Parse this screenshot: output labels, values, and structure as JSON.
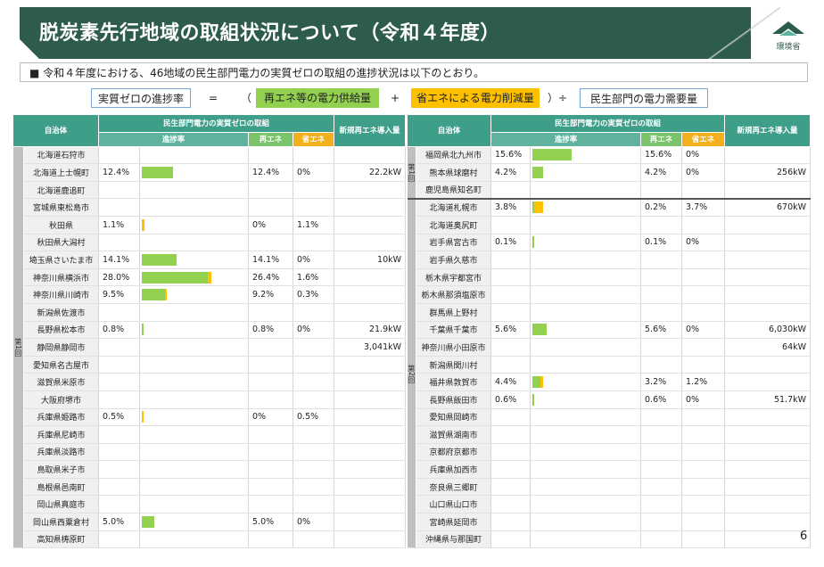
{
  "header": {
    "title": "脱炭素先行地域の取組状況について（令和４年度）",
    "logo_text": "環境省"
  },
  "description": "■  令和４年度における、46地域の民生部門電力の実質ゼロの取組の進捗状況は以下のとおり。",
  "formula": {
    "lhs": "実質ゼロの進捗率",
    "eq": "=",
    "lparen": "（",
    "term1": "再エネ等の電力供給量",
    "plus": "+",
    "term2": "省エネによる電力削減量",
    "rparen_div": "）÷",
    "term3": "民生部門の電力需要量"
  },
  "colors": {
    "title_bg": "#2e5c4c",
    "header_bg": "#3e9e8a",
    "re": "#92d050",
    "sho": "#ffc000"
  },
  "table_headers": {
    "municipality": "自治体",
    "group": "民生部門電力の実質ゼロの取組",
    "progress": "進捗率",
    "re": "再エネ",
    "sho": "省エネ",
    "new_re": "新規再エネ導入量"
  },
  "left_round_label": "第1回",
  "left_rows": [
    {
      "name": "北海道石狩市",
      "progress": "",
      "re": "",
      "sho": "",
      "new": "",
      "re_pct": 0,
      "sho_pct": 0
    },
    {
      "name": "北海道上士幌町",
      "progress": "12.4%",
      "re": "12.4%",
      "sho": "0%",
      "new": "22.2kW",
      "re_pct": 12.4,
      "sho_pct": 0
    },
    {
      "name": "北海道鹿追町",
      "progress": "",
      "re": "",
      "sho": "",
      "new": "",
      "re_pct": 0,
      "sho_pct": 0
    },
    {
      "name": "宮城県東松島市",
      "progress": "",
      "re": "",
      "sho": "",
      "new": "",
      "re_pct": 0,
      "sho_pct": 0
    },
    {
      "name": "秋田県",
      "progress": "1.1%",
      "re": "0%",
      "sho": "1.1%",
      "new": "",
      "re_pct": 0,
      "sho_pct": 1.1
    },
    {
      "name": "秋田県大潟村",
      "progress": "",
      "re": "",
      "sho": "",
      "new": "",
      "re_pct": 0,
      "sho_pct": 0
    },
    {
      "name": "埼玉県さいたま市",
      "progress": "14.1%",
      "re": "14.1%",
      "sho": "0%",
      "new": "10kW",
      "re_pct": 14.1,
      "sho_pct": 0
    },
    {
      "name": "神奈川県横浜市",
      "progress": "28.0%",
      "re": "26.4%",
      "sho": "1.6%",
      "new": "",
      "re_pct": 26.4,
      "sho_pct": 1.6
    },
    {
      "name": "神奈川県川崎市",
      "progress": "9.5%",
      "re": "9.2%",
      "sho": "0.3%",
      "new": "",
      "re_pct": 9.2,
      "sho_pct": 0.3
    },
    {
      "name": "新潟県佐渡市",
      "progress": "",
      "re": "",
      "sho": "",
      "new": "",
      "re_pct": 0,
      "sho_pct": 0
    },
    {
      "name": "長野県松本市",
      "progress": "0.8%",
      "re": "0.8%",
      "sho": "0%",
      "new": "21.9kW",
      "re_pct": 0.8,
      "sho_pct": 0
    },
    {
      "name": "静岡県静岡市",
      "progress": "",
      "re": "",
      "sho": "",
      "new": "3,041kW",
      "re_pct": 0,
      "sho_pct": 0
    },
    {
      "name": "愛知県名古屋市",
      "progress": "",
      "re": "",
      "sho": "",
      "new": "",
      "re_pct": 0,
      "sho_pct": 0
    },
    {
      "name": "滋賀県米原市",
      "progress": "",
      "re": "",
      "sho": "",
      "new": "",
      "re_pct": 0,
      "sho_pct": 0
    },
    {
      "name": "大阪府堺市",
      "progress": "",
      "re": "",
      "sho": "",
      "new": "",
      "re_pct": 0,
      "sho_pct": 0
    },
    {
      "name": "兵庫県姫路市",
      "progress": "0.5%",
      "re": "0%",
      "sho": "0.5%",
      "new": "",
      "re_pct": 0,
      "sho_pct": 0.5
    },
    {
      "name": "兵庫県尼崎市",
      "progress": "",
      "re": "",
      "sho": "",
      "new": "",
      "re_pct": 0,
      "sho_pct": 0
    },
    {
      "name": "兵庫県淡路市",
      "progress": "",
      "re": "",
      "sho": "",
      "new": "",
      "re_pct": 0,
      "sho_pct": 0
    },
    {
      "name": "鳥取県米子市",
      "progress": "",
      "re": "",
      "sho": "",
      "new": "",
      "re_pct": 0,
      "sho_pct": 0
    },
    {
      "name": "島根県邑南町",
      "progress": "",
      "re": "",
      "sho": "",
      "new": "",
      "re_pct": 0,
      "sho_pct": 0
    },
    {
      "name": "岡山県真庭市",
      "progress": "",
      "re": "",
      "sho": "",
      "new": "",
      "re_pct": 0,
      "sho_pct": 0
    },
    {
      "name": "岡山県西粟倉村",
      "progress": "5.0%",
      "re": "5.0%",
      "sho": "0%",
      "new": "",
      "re_pct": 5.0,
      "sho_pct": 0
    },
    {
      "name": "高知県梼原町",
      "progress": "",
      "re": "",
      "sho": "",
      "new": "",
      "re_pct": 0,
      "sho_pct": 0
    }
  ],
  "right_round1_label": "第1回",
  "right_round2_label": "第2回",
  "right_rows": [
    {
      "name": "福岡県北九州市",
      "progress": "15.6%",
      "re": "15.6%",
      "sho": "0%",
      "new": "",
      "re_pct": 15.6,
      "sho_pct": 0
    },
    {
      "name": "熊本県球磨村",
      "progress": "4.2%",
      "re": "4.2%",
      "sho": "0%",
      "new": "256kW",
      "re_pct": 4.2,
      "sho_pct": 0
    },
    {
      "name": "鹿児島県知名町",
      "progress": "",
      "re": "",
      "sho": "",
      "new": "",
      "re_pct": 0,
      "sho_pct": 0
    },
    {
      "name": "北海道札幌市",
      "progress": "3.8%",
      "re": "0.2%",
      "sho": "3.7%",
      "new": "670kW",
      "re_pct": 0.2,
      "sho_pct": 3.7
    },
    {
      "name": "北海道奥尻町",
      "progress": "",
      "re": "",
      "sho": "",
      "new": "",
      "re_pct": 0,
      "sho_pct": 0
    },
    {
      "name": "岩手県宮古市",
      "progress": "0.1%",
      "re": "0.1%",
      "sho": "0%",
      "new": "",
      "re_pct": 0.1,
      "sho_pct": 0
    },
    {
      "name": "岩手県久慈市",
      "progress": "",
      "re": "",
      "sho": "",
      "new": "",
      "re_pct": 0,
      "sho_pct": 0
    },
    {
      "name": "栃木県宇都宮市",
      "progress": "",
      "re": "",
      "sho": "",
      "new": "",
      "re_pct": 0,
      "sho_pct": 0
    },
    {
      "name": "栃木県那須塩原市",
      "progress": "",
      "re": "",
      "sho": "",
      "new": "",
      "re_pct": 0,
      "sho_pct": 0
    },
    {
      "name": "群馬県上野村",
      "progress": "",
      "re": "",
      "sho": "",
      "new": "",
      "re_pct": 0,
      "sho_pct": 0
    },
    {
      "name": "千葉県千葉市",
      "progress": "5.6%",
      "re": "5.6%",
      "sho": "0%",
      "new": "6,030kW",
      "re_pct": 5.6,
      "sho_pct": 0
    },
    {
      "name": "神奈川県小田原市",
      "progress": "",
      "re": "",
      "sho": "",
      "new": "64kW",
      "re_pct": 0,
      "sho_pct": 0
    },
    {
      "name": "新潟県関川村",
      "progress": "",
      "re": "",
      "sho": "",
      "new": "",
      "re_pct": 0,
      "sho_pct": 0
    },
    {
      "name": "福井県敦賀市",
      "progress": "4.4%",
      "re": "3.2%",
      "sho": "1.2%",
      "new": "",
      "re_pct": 3.2,
      "sho_pct": 1.2
    },
    {
      "name": "長野県飯田市",
      "progress": "0.6%",
      "re": "0.6%",
      "sho": "0%",
      "new": "51.7kW",
      "re_pct": 0.6,
      "sho_pct": 0
    },
    {
      "name": "愛知県岡崎市",
      "progress": "",
      "re": "",
      "sho": "",
      "new": "",
      "re_pct": 0,
      "sho_pct": 0
    },
    {
      "name": "滋賀県湖南市",
      "progress": "",
      "re": "",
      "sho": "",
      "new": "",
      "re_pct": 0,
      "sho_pct": 0
    },
    {
      "name": "京都府京都市",
      "progress": "",
      "re": "",
      "sho": "",
      "new": "",
      "re_pct": 0,
      "sho_pct": 0
    },
    {
      "name": "兵庫県加西市",
      "progress": "",
      "re": "",
      "sho": "",
      "new": "",
      "re_pct": 0,
      "sho_pct": 0
    },
    {
      "name": "奈良県三郷町",
      "progress": "",
      "re": "",
      "sho": "",
      "new": "",
      "re_pct": 0,
      "sho_pct": 0
    },
    {
      "name": "山口県山口市",
      "progress": "",
      "re": "",
      "sho": "",
      "new": "",
      "re_pct": 0,
      "sho_pct": 0
    },
    {
      "name": "宮崎県延岡市",
      "progress": "",
      "re": "",
      "sho": "",
      "new": "",
      "re_pct": 0,
      "sho_pct": 0
    },
    {
      "name": "沖縄県与那国町",
      "progress": "",
      "re": "",
      "sho": "",
      "new": "",
      "re_pct": 0,
      "sho_pct": 0
    }
  ],
  "page_number": "6"
}
